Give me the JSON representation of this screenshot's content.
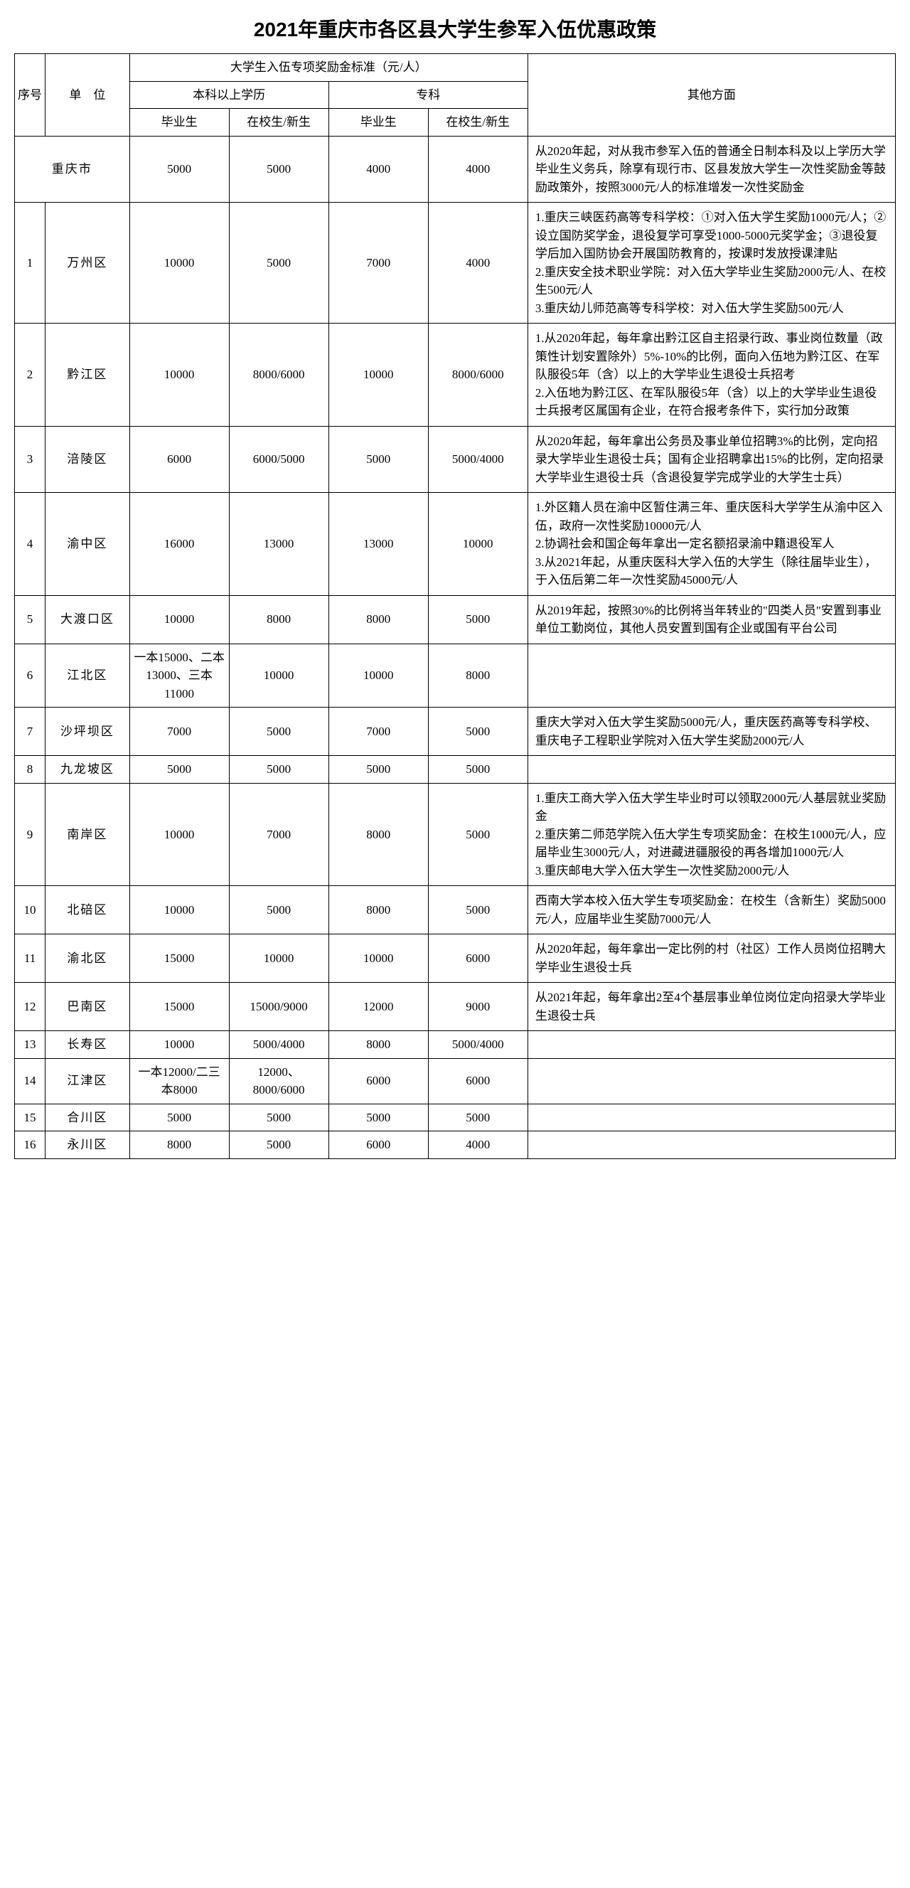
{
  "title": "2021年重庆市各区县大学生参军入伍优惠政策",
  "headers": {
    "seq": "序号",
    "unit": "单　位",
    "bonus_group": "大学生入伍专项奖励金标准（元/人）",
    "bachelor_group": "本科以上学历",
    "junior_group": "专科",
    "grad": "毕业生",
    "student": "在校生/新生",
    "other": "其他方面"
  },
  "rows": [
    {
      "seq": "",
      "unit": "重庆市",
      "b_grad": "5000",
      "b_stu": "5000",
      "j_grad": "4000",
      "j_stu": "4000",
      "other": "从2020年起，对从我市参军入伍的普通全日制本科及以上学历大学毕业生义务兵，除享有现行市、区县发放大学生一次性奖励金等鼓励政策外，按照3000元/人的标准增发一次性奖励金"
    },
    {
      "seq": "1",
      "unit": "万州区",
      "b_grad": "10000",
      "b_stu": "5000",
      "j_grad": "7000",
      "j_stu": "4000",
      "other": "1.重庆三峡医药高等专科学校：①对入伍大学生奖励1000元/人；②设立国防奖学金，退役复学可享受1000-5000元奖学金；③退役复学后加入国防协会开展国防教育的，按课时发放授课津贴\n2.重庆安全技术职业学院：对入伍大学毕业生奖励2000元/人、在校生500元/人\n3.重庆幼儿师范高等专科学校：对入伍大学生奖励500元/人"
    },
    {
      "seq": "2",
      "unit": "黔江区",
      "b_grad": "10000",
      "b_stu": "8000/6000",
      "j_grad": "10000",
      "j_stu": "8000/6000",
      "other": "1.从2020年起，每年拿出黔江区自主招录行政、事业岗位数量（政策性计划安置除外）5%-10%的比例，面向入伍地为黔江区、在军队服役5年（含）以上的大学毕业生退役士兵招考\n2.入伍地为黔江区、在军队服役5年（含）以上的大学毕业生退役士兵报考区属国有企业，在符合报考条件下，实行加分政策"
    },
    {
      "seq": "3",
      "unit": "涪陵区",
      "b_grad": "6000",
      "b_stu": "6000/5000",
      "j_grad": "5000",
      "j_stu": "5000/4000",
      "other": "从2020年起，每年拿出公务员及事业单位招聘3%的比例，定向招录大学毕业生退役士兵；国有企业招聘拿出15%的比例，定向招录大学毕业生退役士兵（含退役复学完成学业的大学生士兵）"
    },
    {
      "seq": "4",
      "unit": "渝中区",
      "b_grad": "16000",
      "b_stu": "13000",
      "j_grad": "13000",
      "j_stu": "10000",
      "other": "1.外区籍人员在渝中区暂住满三年、重庆医科大学学生从渝中区入伍，政府一次性奖励10000元/人\n2.协调社会和国企每年拿出一定名额招录渝中籍退役军人\n3.从2021年起，从重庆医科大学入伍的大学生（除往届毕业生），于入伍后第二年一次性奖励45000元/人"
    },
    {
      "seq": "5",
      "unit": "大渡口区",
      "b_grad": "10000",
      "b_stu": "8000",
      "j_grad": "8000",
      "j_stu": "5000",
      "other": "从2019年起，按照30%的比例将当年转业的\"四类人员\"安置到事业单位工勤岗位，其他人员安置到国有企业或国有平台公司"
    },
    {
      "seq": "6",
      "unit": "江北区",
      "b_grad": "一本15000、二本13000、三本11000",
      "b_stu": "10000",
      "j_grad": "10000",
      "j_stu": "8000",
      "other": ""
    },
    {
      "seq": "7",
      "unit": "沙坪坝区",
      "b_grad": "7000",
      "b_stu": "5000",
      "j_grad": "7000",
      "j_stu": "5000",
      "other": "重庆大学对入伍大学生奖励5000元/人，重庆医药高等专科学校、重庆电子工程职业学院对入伍大学生奖励2000元/人"
    },
    {
      "seq": "8",
      "unit": "九龙坡区",
      "b_grad": "5000",
      "b_stu": "5000",
      "j_grad": "5000",
      "j_stu": "5000",
      "other": ""
    },
    {
      "seq": "9",
      "unit": "南岸区",
      "b_grad": "10000",
      "b_stu": "7000",
      "j_grad": "8000",
      "j_stu": "5000",
      "other": "1.重庆工商大学入伍大学生毕业时可以领取2000元/人基层就业奖励金\n2.重庆第二师范学院入伍大学生专项奖励金：在校生1000元/人，应届毕业生3000元/人，对进藏进疆服役的再各增加1000元/人\n3.重庆邮电大学入伍大学生一次性奖励2000元/人"
    },
    {
      "seq": "10",
      "unit": "北碚区",
      "b_grad": "10000",
      "b_stu": "5000",
      "j_grad": "8000",
      "j_stu": "5000",
      "other": "西南大学本校入伍大学生专项奖励金：在校生（含新生）奖励5000元/人，应届毕业生奖励7000元/人"
    },
    {
      "seq": "11",
      "unit": "渝北区",
      "b_grad": "15000",
      "b_stu": "10000",
      "j_grad": "10000",
      "j_stu": "6000",
      "other": "从2020年起，每年拿出一定比例的村（社区）工作人员岗位招聘大学毕业生退役士兵"
    },
    {
      "seq": "12",
      "unit": "巴南区",
      "b_grad": "15000",
      "b_stu": "15000/9000",
      "j_grad": "12000",
      "j_stu": "9000",
      "other": "从2021年起，每年拿出2至4个基层事业单位岗位定向招录大学毕业生退役士兵"
    },
    {
      "seq": "13",
      "unit": "长寿区",
      "b_grad": "10000",
      "b_stu": "5000/4000",
      "j_grad": "8000",
      "j_stu": "5000/4000",
      "other": ""
    },
    {
      "seq": "14",
      "unit": "江津区",
      "b_grad": "一本12000/二三本8000",
      "b_stu": "12000、8000/6000",
      "j_grad": "6000",
      "j_stu": "6000",
      "other": ""
    },
    {
      "seq": "15",
      "unit": "合川区",
      "b_grad": "5000",
      "b_stu": "5000",
      "j_grad": "5000",
      "j_stu": "5000",
      "other": ""
    },
    {
      "seq": "16",
      "unit": "永川区",
      "b_grad": "8000",
      "b_stu": "5000",
      "j_grad": "6000",
      "j_stu": "4000",
      "other": ""
    }
  ]
}
